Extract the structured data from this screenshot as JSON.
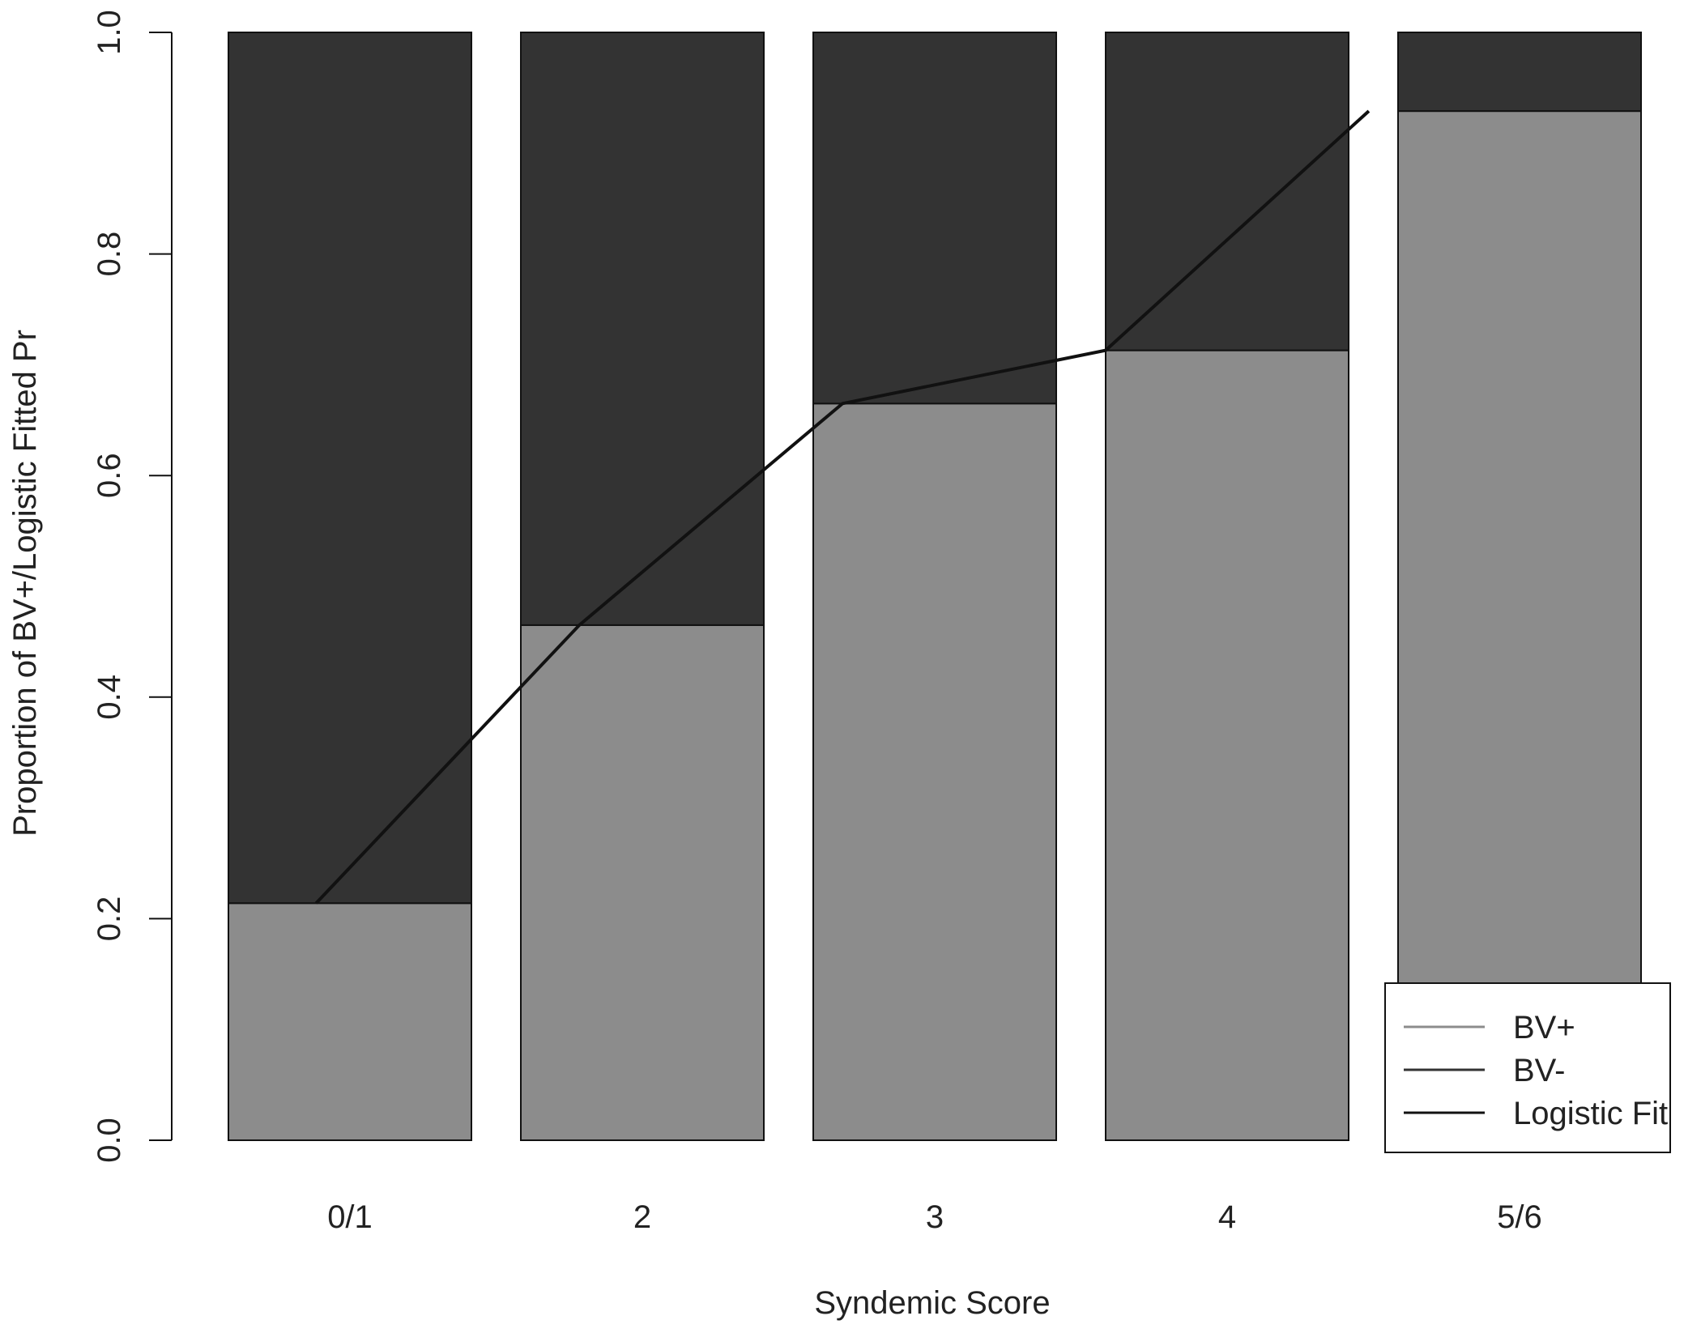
{
  "chart_data": {
    "type": "bar",
    "stacked": true,
    "categories": [
      "0/1",
      "2",
      "3",
      "4",
      "5/6"
    ],
    "series": [
      {
        "name": "BV+",
        "values": [
          0.214,
          0.465,
          0.665,
          0.713,
          0.929
        ],
        "color": "#8c8c8c"
      },
      {
        "name": "BV-",
        "values": [
          0.786,
          0.535,
          0.335,
          0.287,
          0.071
        ],
        "color": "#333333"
      }
    ],
    "fit_line": {
      "name": "Logistic Fit",
      "color": "#111111",
      "points": [
        {
          "x": 0.3,
          "y": 0.214
        },
        {
          "x": 1.2,
          "y": 0.465
        },
        {
          "x": 2.1,
          "y": 0.665
        },
        {
          "x": 3.0,
          "y": 0.713
        },
        {
          "x": 3.9,
          "y": 0.929
        }
      ]
    },
    "xlabel": "Syndemic Score",
    "ylabel": "Proportion of BV+/Logistic Fitted Pr",
    "ylim": [
      0,
      1
    ],
    "yticks": [
      "0.0",
      "0.2",
      "0.4",
      "0.6",
      "0.8",
      "1.0"
    ],
    "grid": false,
    "legend": {
      "position": "bottom-right",
      "entries": [
        {
          "label": "BV+",
          "color": "#8c8c8c"
        },
        {
          "label": "BV-",
          "color": "#333333"
        },
        {
          "label": "Logistic Fit",
          "color": "#111111"
        }
      ]
    }
  }
}
